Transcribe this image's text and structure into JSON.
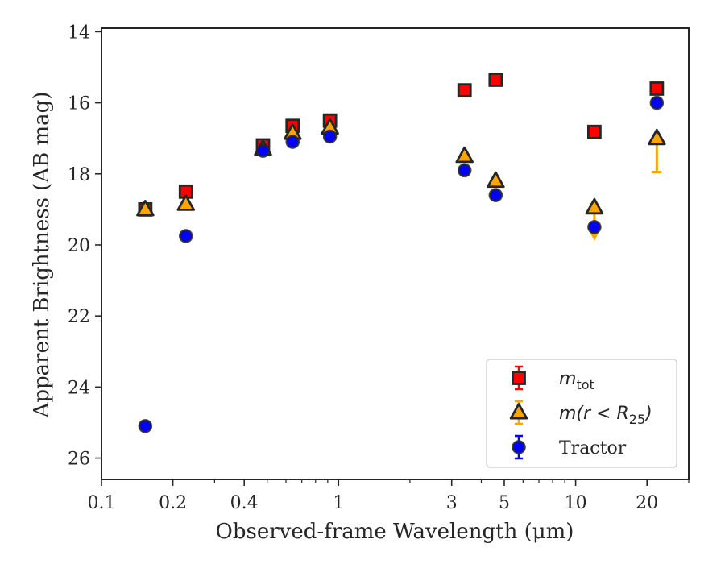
{
  "chart_data": {
    "type": "scatter",
    "xlabel": "Observed-frame Wavelength (μm)",
    "ylabel": "Apparent Brightness (AB mag)",
    "xscale": "log",
    "xlim": [
      0.1,
      30
    ],
    "ylim": [
      26.6,
      13.9
    ],
    "y_inverted": true,
    "x_ticks": [
      0.1,
      0.2,
      0.4,
      1,
      3,
      5,
      10,
      20
    ],
    "x_tick_labels": [
      "0.1",
      "0.2",
      "0.4",
      "1",
      "3",
      "5",
      "10",
      "20"
    ],
    "y_ticks": [
      14,
      16,
      18,
      20,
      22,
      24,
      26
    ],
    "y_tick_labels": [
      "14",
      "16",
      "18",
      "20",
      "22",
      "24",
      "26"
    ],
    "grid": false,
    "legend_position": "bottom-right",
    "series": [
      {
        "name": "m_tot",
        "legend_main": "m",
        "legend_sub": "tot",
        "marker": "square",
        "color": "#ff0000",
        "edge_color": "#262626",
        "error_color": "#ff0000",
        "points": [
          {
            "x": 0.153,
            "y": 19.0
          },
          {
            "x": 0.227,
            "y": 18.5
          },
          {
            "x": 0.48,
            "y": 17.2
          },
          {
            "x": 0.64,
            "y": 16.65
          },
          {
            "x": 0.92,
            "y": 16.5
          },
          {
            "x": 3.4,
            "y": 15.65
          },
          {
            "x": 4.6,
            "y": 15.35
          },
          {
            "x": 12.0,
            "y": 16.82
          },
          {
            "x": 22.0,
            "y": 15.6
          }
        ]
      },
      {
        "name": "m(r < R_25)",
        "legend_main": "m(r < R",
        "legend_sub": "25",
        "legend_close": ")",
        "marker": "triangle",
        "color": "#ffa500",
        "edge_color": "#262626",
        "error_color": "#ffa500",
        "points": [
          {
            "x": 0.153,
            "y": 19.0
          },
          {
            "x": 0.227,
            "y": 18.85
          },
          {
            "x": 0.48,
            "y": 17.3
          },
          {
            "x": 0.64,
            "y": 16.85
          },
          {
            "x": 0.92,
            "y": 16.7
          },
          {
            "x": 3.4,
            "y": 17.5
          },
          {
            "x": 4.6,
            "y": 18.2
          },
          {
            "x": 12.0,
            "y": 18.95,
            "err_lo": 0,
            "err_hi": 0.85
          },
          {
            "x": 22.0,
            "y": 17.0,
            "err_lo": 0,
            "err_hi": 0.95
          }
        ]
      },
      {
        "name": "Tractor",
        "legend_main": "Tractor",
        "marker": "circle",
        "color": "#0000ff",
        "edge_color": "#262626",
        "error_color": "#0000ff",
        "points": [
          {
            "x": 0.153,
            "y": 25.1
          },
          {
            "x": 0.227,
            "y": 19.75
          },
          {
            "x": 0.48,
            "y": 17.35
          },
          {
            "x": 0.64,
            "y": 17.1
          },
          {
            "x": 0.92,
            "y": 16.95
          },
          {
            "x": 3.4,
            "y": 17.9
          },
          {
            "x": 4.6,
            "y": 18.6
          },
          {
            "x": 12.0,
            "y": 19.5
          },
          {
            "x": 22.0,
            "y": 16.0
          }
        ]
      }
    ]
  }
}
